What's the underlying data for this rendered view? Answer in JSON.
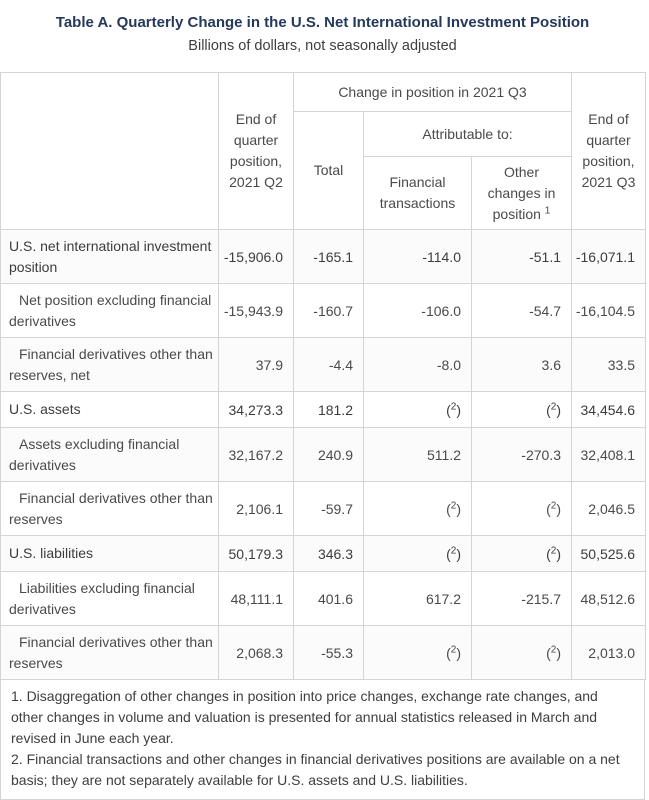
{
  "title": "Table A. Quarterly Change in the U.S. Net International Investment Position",
  "subtitle": "Billions of dollars, not seasonally adjusted",
  "colors": {
    "title_navy": "#24395b",
    "body_text": "#4a4a4a",
    "border_gray": "#d4d4d4",
    "stripe": "#fbfbfb"
  },
  "table": {
    "header": {
      "eoq_q2": "End of quarter position, 2021 Q2",
      "change_group": "Change in position in 2021 Q3",
      "total": "Total",
      "attributable": "Attributable to:",
      "financial_transactions": "Financial transactions",
      "other_changes": "Other changes in position",
      "other_changes_footnote_ref": "1",
      "eoq_q3": "End of quarter position, 2021 Q3"
    },
    "rows": [
      {
        "label": "U.S. net international investment position",
        "bold": true,
        "indent": false,
        "values": [
          "-15,906.0",
          "-165.1",
          "-114.0",
          "-51.1",
          "-16,071.1"
        ]
      },
      {
        "label": "Net position excluding financial derivatives",
        "bold": false,
        "indent": true,
        "values": [
          "-15,943.9",
          "-160.7",
          "-106.0",
          "-54.7",
          "-16,104.5"
        ]
      },
      {
        "label": "Financial derivatives other than reserves, net",
        "bold": false,
        "indent": true,
        "values": [
          "37.9",
          "-4.4",
          "-8.0",
          "3.6",
          "33.5"
        ]
      },
      {
        "label": "U.S. assets",
        "bold": true,
        "indent": false,
        "values": [
          "34,273.3",
          "181.2",
          "(2)",
          "(2)",
          "34,454.6"
        ]
      },
      {
        "label": "Assets excluding financial derivatives",
        "bold": false,
        "indent": true,
        "values": [
          "32,167.2",
          "240.9",
          "511.2",
          "-270.3",
          "32,408.1"
        ]
      },
      {
        "label": "Financial derivatives other than reserves",
        "bold": false,
        "indent": true,
        "values": [
          "2,106.1",
          "-59.7",
          "(2)",
          "(2)",
          "2,046.5"
        ]
      },
      {
        "label": "U.S. liabilities",
        "bold": true,
        "indent": false,
        "values": [
          "50,179.3",
          "346.3",
          "(2)",
          "(2)",
          "50,525.6"
        ]
      },
      {
        "label": "Liabilities excluding financial derivatives",
        "bold": false,
        "indent": true,
        "values": [
          "48,111.1",
          "401.6",
          "617.2",
          "-215.7",
          "48,512.6"
        ]
      },
      {
        "label": "Financial derivatives other than reserves",
        "bold": false,
        "indent": true,
        "values": [
          "2,068.3",
          "-55.3",
          "(2)",
          "(2)",
          "2,013.0"
        ]
      }
    ]
  },
  "footnotes": [
    "1. Disaggregation of other changes in position into price changes, exchange rate changes, and other changes in volume and valuation is presented for annual statistics released in March and revised in June each year.",
    "2. Financial transactions and other changes in financial derivatives positions are available on a net basis; they are not separately available for U.S. assets and U.S. liabilities."
  ]
}
